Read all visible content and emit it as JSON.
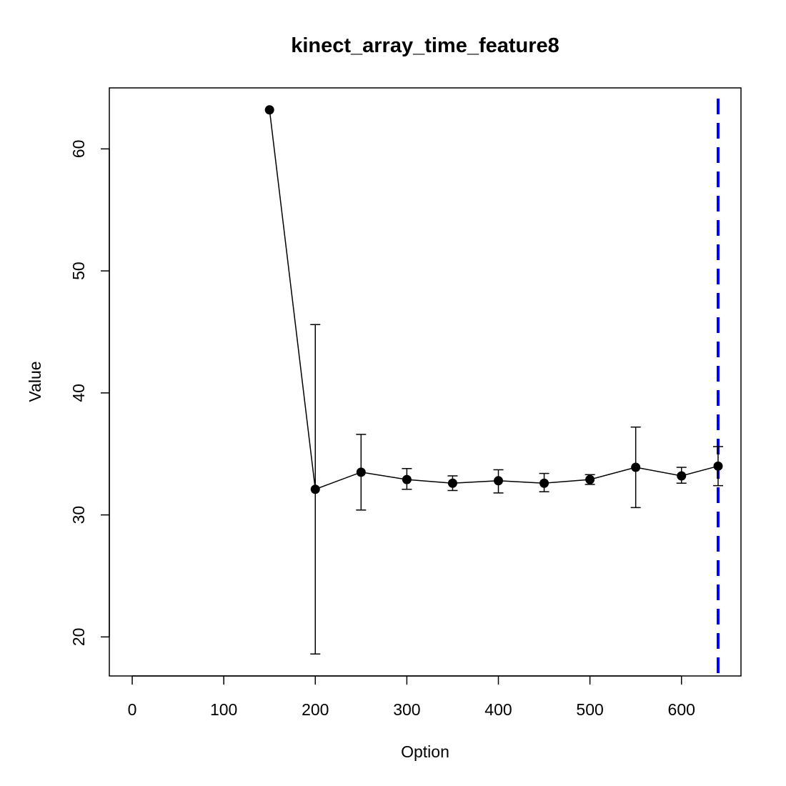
{
  "chart_data": {
    "type": "line",
    "title": "kinect_array_time_feature8",
    "xlabel": "Option",
    "ylabel": "Value",
    "xlim": [
      -25,
      665
    ],
    "ylim": [
      16.8,
      65.0
    ],
    "xticks": [
      0,
      100,
      200,
      300,
      400,
      500,
      600
    ],
    "yticks": [
      20,
      30,
      40,
      50,
      60
    ],
    "grid": false,
    "series": [
      {
        "color": "#000000",
        "points": [
          {
            "x": 150,
            "y": 63.2,
            "lower": null,
            "upper": null
          },
          {
            "x": 200,
            "y": 32.1,
            "lower": 18.6,
            "upper": 45.6
          },
          {
            "x": 250,
            "y": 33.5,
            "lower": 30.4,
            "upper": 36.6
          },
          {
            "x": 300,
            "y": 32.9,
            "lower": 32.1,
            "upper": 33.8
          },
          {
            "x": 350,
            "y": 32.6,
            "lower": 32.0,
            "upper": 33.2
          },
          {
            "x": 400,
            "y": 32.8,
            "lower": 31.8,
            "upper": 33.7
          },
          {
            "x": 450,
            "y": 32.6,
            "lower": 31.9,
            "upper": 33.4
          },
          {
            "x": 500,
            "y": 32.9,
            "lower": 32.5,
            "upper": 33.3
          },
          {
            "x": 550,
            "y": 33.9,
            "lower": 30.6,
            "upper": 37.2
          },
          {
            "x": 600,
            "y": 33.2,
            "lower": 32.6,
            "upper": 33.9
          },
          {
            "x": 640,
            "y": 34.0,
            "lower": 32.4,
            "upper": 35.6
          }
        ]
      }
    ],
    "reference_line": {
      "x": 640,
      "color": "#0000ff",
      "style": "dashed"
    }
  }
}
